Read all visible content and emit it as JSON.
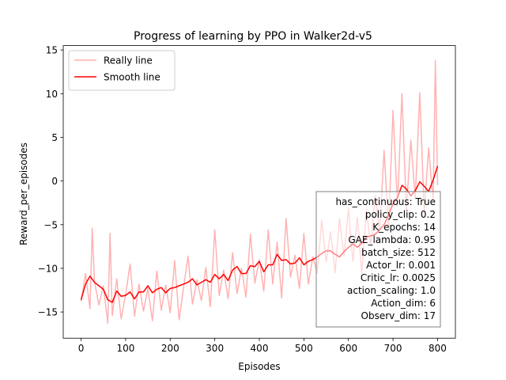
{
  "chart_data": {
    "type": "line",
    "title": "Progress of learning by PPO in Walker2d-v5",
    "xlabel": "Episodes",
    "ylabel": "Reward_per_episodes",
    "xlim": [
      -40,
      840
    ],
    "ylim": [
      -18,
      15.5
    ],
    "xticks": [
      0,
      100,
      200,
      300,
      400,
      500,
      600,
      700,
      800
    ],
    "yticks": [
      -15,
      -10,
      -5,
      0,
      5,
      10,
      15
    ],
    "xtick_labels": [
      "0",
      "100",
      "200",
      "300",
      "400",
      "500",
      "600",
      "700",
      "800"
    ],
    "ytick_labels": [
      "−15",
      "−10",
      "−5",
      "0",
      "5",
      "10",
      "15"
    ],
    "grid": false,
    "legend_position": "upper-left",
    "series": [
      {
        "name": "Really line",
        "color": "#ffb2b2",
        "x": [
          0,
          10,
          20,
          25,
          30,
          40,
          50,
          60,
          65,
          70,
          80,
          90,
          100,
          110,
          120,
          130,
          140,
          150,
          160,
          170,
          180,
          190,
          200,
          210,
          220,
          230,
          240,
          250,
          260,
          270,
          280,
          290,
          300,
          310,
          320,
          330,
          340,
          350,
          360,
          370,
          380,
          390,
          400,
          410,
          420,
          430,
          440,
          450,
          460,
          470,
          480,
          490,
          500,
          510,
          520,
          530,
          540,
          550,
          560,
          570,
          580,
          590,
          600,
          610,
          620,
          630,
          640,
          650,
          660,
          670,
          680,
          690,
          700,
          710,
          720,
          730,
          740,
          750,
          760,
          770,
          780,
          790,
          795,
          800
        ],
        "values": [
          -13.8,
          -10.6,
          -14.6,
          -5.4,
          -11.5,
          -14.2,
          -12.0,
          -16.3,
          -6.0,
          -15.4,
          -11.2,
          -15.8,
          -13.0,
          -9.5,
          -15.5,
          -11.8,
          -14.9,
          -12.3,
          -16.0,
          -10.3,
          -14.8,
          -11.9,
          -15.1,
          -9.1,
          -15.9,
          -12.2,
          -8.6,
          -14.1,
          -11.3,
          -13.7,
          -9.9,
          -14.4,
          -5.6,
          -13.1,
          -10.2,
          -13.5,
          -8.2,
          -12.9,
          -10.0,
          -13.3,
          -6.1,
          -11.7,
          -9.0,
          -12.6,
          -5.6,
          -11.8,
          -7.0,
          -13.4,
          -4.3,
          -11.0,
          -8.5,
          -12.3,
          -6.0,
          -11.8,
          -8.7,
          -10.5,
          -4.5,
          -9.3,
          -5.8,
          -10.5,
          -4.3,
          -8.6,
          -3.2,
          -9.2,
          -4.2,
          -10.6,
          -3.3,
          -7.4,
          -1.7,
          -5.8,
          3.5,
          -5.4,
          8.1,
          -2.9,
          10.0,
          -3.4,
          4.7,
          -2.0,
          10.1,
          -3.5,
          3.8,
          -2.4,
          13.8,
          -0.5
        ]
      },
      {
        "name": "Smooth line",
        "color": "#ff0000",
        "x": [
          0,
          10,
          20,
          30,
          40,
          50,
          60,
          70,
          80,
          90,
          100,
          110,
          120,
          130,
          140,
          150,
          160,
          170,
          180,
          190,
          200,
          210,
          220,
          230,
          240,
          250,
          260,
          270,
          280,
          290,
          300,
          310,
          320,
          330,
          340,
          350,
          360,
          370,
          380,
          390,
          400,
          410,
          420,
          430,
          440,
          450,
          460,
          470,
          480,
          490,
          500,
          510,
          520,
          530,
          540,
          550,
          560,
          570,
          580,
          590,
          600,
          610,
          620,
          630,
          640,
          650,
          660,
          670,
          680,
          690,
          700,
          710,
          720,
          730,
          740,
          750,
          760,
          770,
          780,
          790,
          800
        ],
        "values": [
          -13.6,
          -11.8,
          -10.9,
          -11.6,
          -12.0,
          -12.4,
          -13.6,
          -13.9,
          -12.6,
          -13.2,
          -13.1,
          -12.7,
          -13.5,
          -12.7,
          -12.7,
          -12.0,
          -12.8,
          -12.4,
          -12.2,
          -12.8,
          -12.3,
          -12.2,
          -12.0,
          -11.8,
          -11.6,
          -11.2,
          -11.9,
          -11.6,
          -11.3,
          -11.6,
          -10.7,
          -11.2,
          -10.7,
          -11.4,
          -10.2,
          -9.8,
          -10.6,
          -10.6,
          -9.7,
          -9.8,
          -9.2,
          -10.4,
          -9.6,
          -9.6,
          -8.4,
          -9.1,
          -9.0,
          -9.5,
          -9.4,
          -8.8,
          -9.6,
          -9.2,
          -9.0,
          -8.7,
          -8.3,
          -8.0,
          -8.0,
          -8.4,
          -8.7,
          -8.1,
          -7.6,
          -7.2,
          -7.6,
          -7.1,
          -6.4,
          -6.3,
          -6.1,
          -5.6,
          -5.0,
          -3.9,
          -2.6,
          -1.9,
          -0.5,
          -0.9,
          -1.7,
          -1.1,
          -0.1,
          -0.6,
          -1.2,
          0.1,
          1.7
        ]
      }
    ],
    "annotation_box": [
      "has_continuous: True",
      "policy_clip: 0.2",
      "K_epochs: 14",
      "GAE_lambda: 0.95",
      "batch_size: 512",
      "Actor_lr: 0.001",
      "Critic_lr: 0.0025",
      "action_scaling: 1.0",
      "Action_dim: 6",
      "Observ_dim: 17"
    ]
  }
}
